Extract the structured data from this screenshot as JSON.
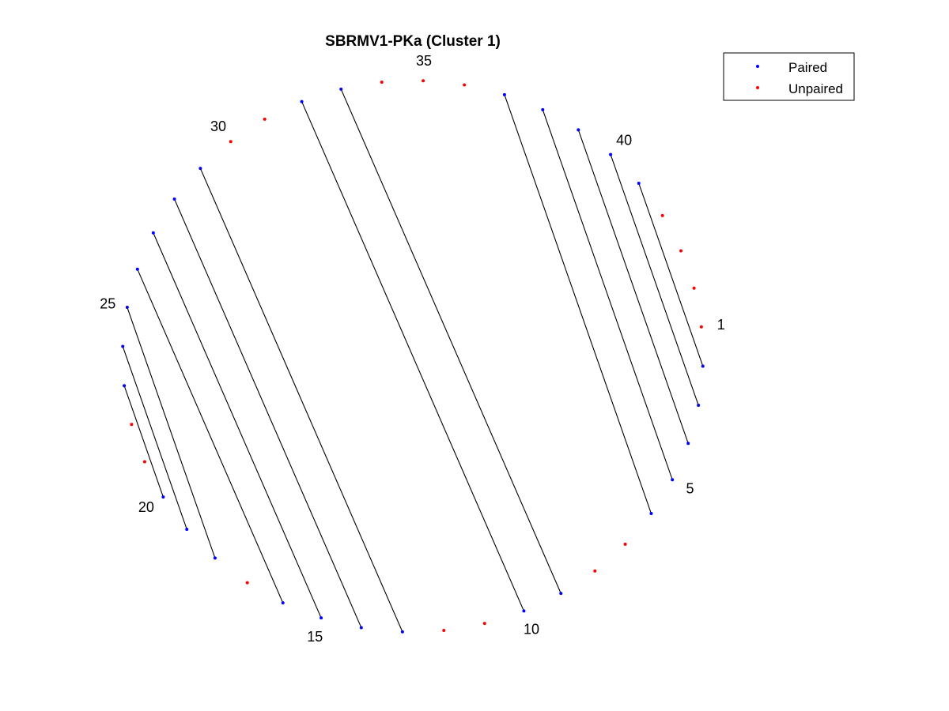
{
  "title": "SBRMV1-PKa (Cluster 1)",
  "legend": {
    "placement": "top-right",
    "items": [
      {
        "label": "Paired",
        "color": "#0000ff"
      },
      {
        "label": "Unpaired",
        "color": "#ff0000"
      }
    ]
  },
  "chart_data": {
    "type": "arc-diagram",
    "title": "SBRMV1-PKa (Cluster 1)",
    "sequence_length": 44,
    "position_labels": [
      1,
      5,
      10,
      15,
      20,
      25,
      30,
      35,
      40
    ],
    "pairs": [
      [
        2,
        41
      ],
      [
        3,
        40
      ],
      [
        4,
        39
      ],
      [
        5,
        38
      ],
      [
        6,
        37
      ],
      [
        9,
        33
      ],
      [
        10,
        32
      ],
      [
        13,
        29
      ],
      [
        14,
        28
      ],
      [
        15,
        27
      ],
      [
        16,
        26
      ],
      [
        18,
        25
      ],
      [
        19,
        24
      ],
      [
        20,
        23
      ]
    ],
    "unpaired": [
      1,
      7,
      8,
      11,
      12,
      17,
      21,
      22,
      30,
      31,
      34,
      35,
      36,
      42,
      43,
      44
    ],
    "paired_color": "#0000ff",
    "unpaired_color": "#ff0000",
    "line_color": "#000000"
  }
}
